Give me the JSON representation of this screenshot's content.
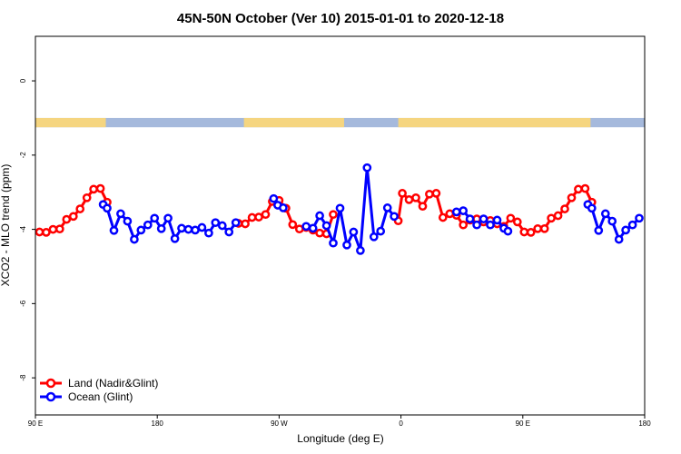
{
  "chart_data": {
    "type": "line",
    "title": "45N-50N October (Ver 10)   2015-01-01 to 2020-12-18",
    "xlabel": "Longitude (deg E)",
    "ylabel": "XCO2 - MLO trend (ppm)",
    "xlim": [
      90,
      540
    ],
    "ylim": [
      -9,
      1.2
    ],
    "x_ticks": [
      {
        "value": 90,
        "label": "90 E"
      },
      {
        "value": 180,
        "label": "180"
      },
      {
        "value": 270,
        "label": "90 W"
      },
      {
        "value": 360,
        "label": "0"
      },
      {
        "value": 450,
        "label": "90 E"
      },
      {
        "value": 540,
        "label": "180"
      }
    ],
    "y_ticks": [
      {
        "value": 0,
        "label": "0"
      },
      {
        "value": -2,
        "label": "-2"
      },
      {
        "value": -4,
        "label": "-4"
      },
      {
        "value": -6,
        "label": "-6"
      },
      {
        "value": -8,
        "label": "-8"
      }
    ],
    "land_ocean_band": {
      "y_range": [
        -1.25,
        -1.0
      ],
      "land_color": "#F5D580",
      "ocean_color": "#A5B9DC",
      "land_segments": [
        [
          90,
          142
        ],
        [
          244,
          318
        ],
        [
          358,
          500
        ]
      ]
    },
    "legend": {
      "position": "bottom-left",
      "entries": [
        "Land (Nadir&Glint)",
        "Ocean (Glint)"
      ]
    },
    "series": [
      {
        "name": "Land (Nadir&Glint)",
        "color": "#FF0000",
        "segments": [
          [
            [
              93,
              -4.07
            ],
            [
              98,
              -4.08
            ],
            [
              103,
              -4.0
            ],
            [
              108,
              -3.99
            ],
            [
              113,
              -3.73
            ],
            [
              118,
              -3.65
            ],
            [
              123,
              -3.45
            ],
            [
              128,
              -3.15
            ],
            [
              133,
              -2.92
            ],
            [
              138,
              -2.9
            ],
            [
              143,
              -3.27
            ]
          ],
          [
            [
              240,
              -3.84
            ],
            [
              245,
              -3.85
            ],
            [
              250,
              -3.68
            ],
            [
              255,
              -3.67
            ],
            [
              260,
              -3.6
            ],
            [
              265,
              -3.25
            ],
            [
              270,
              -3.22
            ],
            [
              275,
              -3.43
            ],
            [
              280,
              -3.87
            ],
            [
              285,
              -3.99
            ],
            [
              290,
              -3.95
            ],
            [
              295,
              -4.02
            ],
            [
              300,
              -4.1
            ],
            [
              305,
              -4.12
            ],
            [
              310,
              -3.6
            ]
          ],
          [
            [
              358,
              -3.77
            ],
            [
              361,
              -3.03
            ],
            [
              366,
              -3.2
            ],
            [
              371,
              -3.15
            ],
            [
              376,
              -3.38
            ],
            [
              381,
              -3.05
            ],
            [
              386,
              -3.03
            ],
            [
              391,
              -3.68
            ],
            [
              396,
              -3.58
            ],
            [
              401,
              -3.62
            ],
            [
              406,
              -3.88
            ],
            [
              411,
              -3.75
            ],
            [
              416,
              -3.72
            ],
            [
              421,
              -3.8
            ],
            [
              426,
              -3.76
            ],
            [
              431,
              -3.85
            ],
            [
              436,
              -3.92
            ],
            [
              441,
              -3.7
            ],
            [
              446,
              -3.8
            ],
            [
              451,
              -4.07
            ],
            [
              456,
              -4.08
            ],
            [
              461,
              -3.98
            ],
            [
              466,
              -3.98
            ],
            [
              471,
              -3.7
            ],
            [
              476,
              -3.63
            ],
            [
              481,
              -3.45
            ],
            [
              486,
              -3.15
            ],
            [
              491,
              -2.92
            ],
            [
              496,
              -2.9
            ],
            [
              501,
              -3.27
            ]
          ]
        ]
      },
      {
        "name": "Ocean (Glint)",
        "color": "#0000FF",
        "segments": [
          [
            [
              140,
              -3.33
            ],
            [
              143,
              -3.43
            ],
            [
              148,
              -4.03
            ],
            [
              153,
              -3.58
            ],
            [
              158,
              -3.78
            ],
            [
              163,
              -4.27
            ],
            [
              168,
              -4.02
            ],
            [
              173,
              -3.88
            ],
            [
              178,
              -3.7
            ],
            [
              183,
              -3.98
            ],
            [
              188,
              -3.7
            ],
            [
              193,
              -4.25
            ],
            [
              198,
              -3.97
            ],
            [
              203,
              -4.0
            ],
            [
              208,
              -4.02
            ],
            [
              213,
              -3.95
            ],
            [
              218,
              -4.1
            ],
            [
              223,
              -3.82
            ],
            [
              228,
              -3.9
            ],
            [
              233,
              -4.07
            ],
            [
              238,
              -3.82
            ]
          ],
          [
            [
              266,
              -3.17
            ],
            [
              269,
              -3.35
            ],
            [
              273,
              -3.42
            ]
          ],
          [
            [
              290,
              -3.92
            ],
            [
              295,
              -3.97
            ],
            [
              300,
              -3.63
            ],
            [
              305,
              -3.9
            ],
            [
              310,
              -4.37
            ],
            [
              315,
              -3.43
            ],
            [
              320,
              -4.42
            ],
            [
              325,
              -4.07
            ],
            [
              330,
              -4.57
            ],
            [
              335,
              -2.34
            ],
            [
              340,
              -4.2
            ],
            [
              345,
              -4.05
            ],
            [
              350,
              -3.42
            ],
            [
              355,
              -3.65
            ]
          ],
          [
            [
              401,
              -3.53
            ],
            [
              406,
              -3.5
            ],
            [
              411,
              -3.72
            ],
            [
              416,
              -3.88
            ],
            [
              421,
              -3.72
            ],
            [
              426,
              -3.88
            ],
            [
              431,
              -3.75
            ],
            [
              436,
              -3.97
            ],
            [
              439,
              -4.05
            ]
          ],
          [
            [
              498,
              -3.33
            ],
            [
              501,
              -3.43
            ],
            [
              506,
              -4.03
            ],
            [
              511,
              -3.58
            ],
            [
              516,
              -3.78
            ],
            [
              521,
              -4.27
            ],
            [
              526,
              -4.02
            ],
            [
              531,
              -3.88
            ],
            [
              536,
              -3.7
            ]
          ]
        ]
      }
    ]
  }
}
